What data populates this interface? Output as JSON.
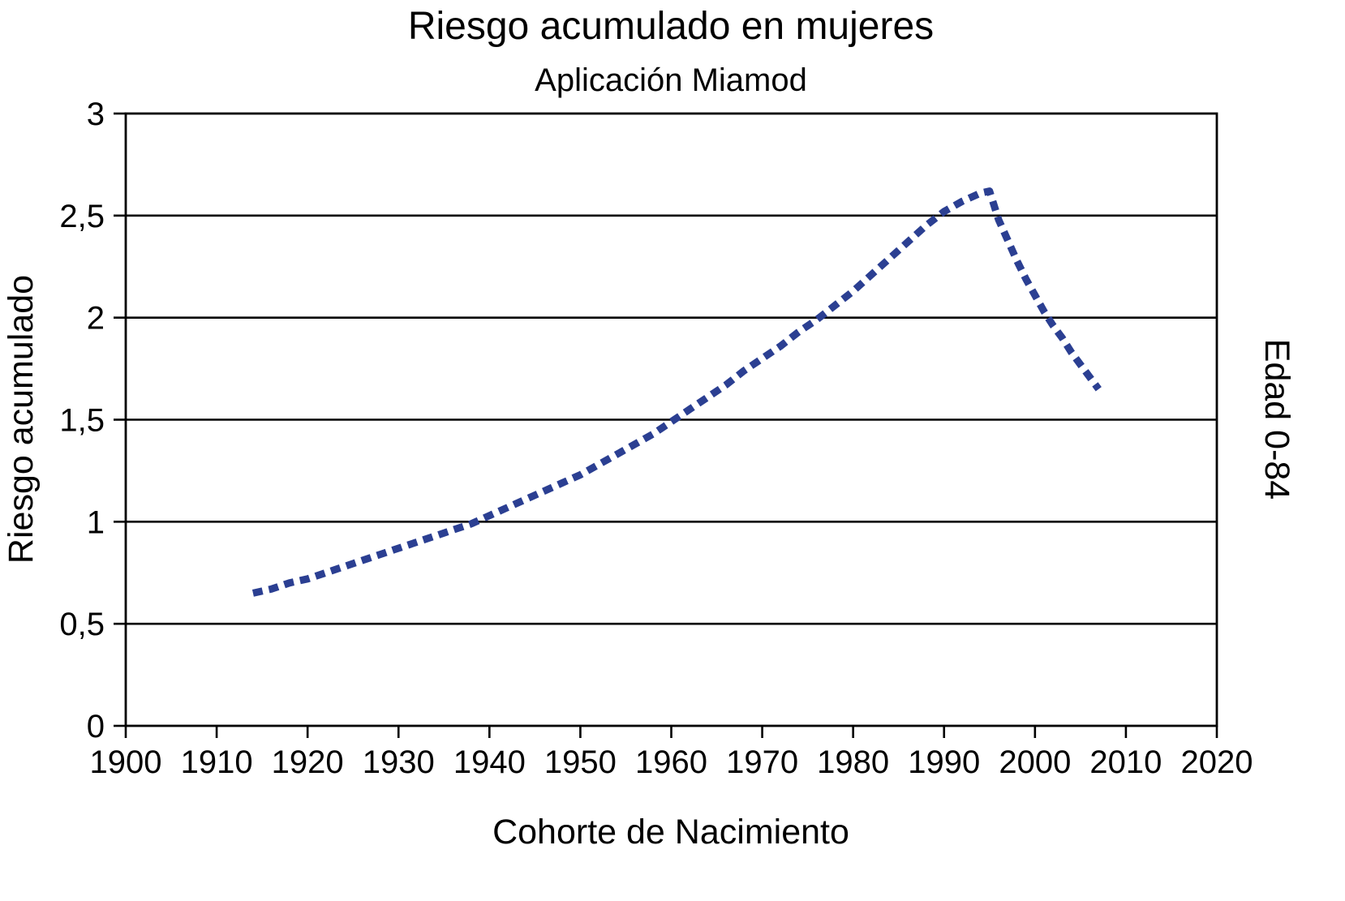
{
  "chart": {
    "title": "Riesgo acumulado en mujeres",
    "subtitle": "Aplicación Miamod",
    "xlabel": "Cohorte de Nacimiento",
    "ylabel": "Riesgo acumulado",
    "right_label": "Edad 0-84"
  },
  "chart_data": {
    "type": "line",
    "title": "Riesgo acumulado en mujeres",
    "subtitle": "Aplicación Miamod",
    "xlabel": "Cohorte de Nacimiento",
    "ylabel": "Riesgo acumulado",
    "y2label": "Edad 0-84",
    "xlim": [
      1900,
      2020
    ],
    "ylim": [
      0,
      3
    ],
    "xticks": [
      1900,
      1910,
      1920,
      1930,
      1940,
      1950,
      1960,
      1970,
      1980,
      1990,
      2000,
      2010,
      2020
    ],
    "yticks": [
      0,
      0.5,
      1,
      1.5,
      2,
      2.5,
      3
    ],
    "ytick_labels": [
      "0",
      "0,5",
      "1",
      "1,5",
      "2",
      "2,5",
      "3"
    ],
    "grid": "horizontal",
    "legend": "none",
    "line_style": "dotted",
    "line_color": "#2b3f92",
    "series": [
      {
        "name": "Riesgo acumulado, Edad 0-84",
        "points": [
          [
            1914,
            0.65
          ],
          [
            1916,
            0.67
          ],
          [
            1918,
            0.7
          ],
          [
            1920,
            0.72
          ],
          [
            1922,
            0.75
          ],
          [
            1924,
            0.78
          ],
          [
            1926,
            0.81
          ],
          [
            1928,
            0.84
          ],
          [
            1930,
            0.87
          ],
          [
            1932,
            0.9
          ],
          [
            1934,
            0.93
          ],
          [
            1936,
            0.96
          ],
          [
            1938,
            0.99
          ],
          [
            1940,
            1.03
          ],
          [
            1942,
            1.07
          ],
          [
            1944,
            1.11
          ],
          [
            1946,
            1.15
          ],
          [
            1948,
            1.19
          ],
          [
            1950,
            1.23
          ],
          [
            1952,
            1.28
          ],
          [
            1954,
            1.33
          ],
          [
            1956,
            1.38
          ],
          [
            1958,
            1.43
          ],
          [
            1960,
            1.49
          ],
          [
            1962,
            1.55
          ],
          [
            1964,
            1.61
          ],
          [
            1966,
            1.67
          ],
          [
            1968,
            1.74
          ],
          [
            1970,
            1.8
          ],
          [
            1972,
            1.86
          ],
          [
            1974,
            1.93
          ],
          [
            1976,
            1.99
          ],
          [
            1978,
            2.06
          ],
          [
            1980,
            2.13
          ],
          [
            1982,
            2.21
          ],
          [
            1984,
            2.29
          ],
          [
            1986,
            2.37
          ],
          [
            1988,
            2.45
          ],
          [
            1990,
            2.52
          ],
          [
            1992,
            2.57
          ],
          [
            1994,
            2.61
          ],
          [
            1995,
            2.62
          ],
          [
            1996,
            2.48
          ],
          [
            1997,
            2.38
          ],
          [
            1998,
            2.28
          ],
          [
            1999,
            2.19
          ],
          [
            2000,
            2.11
          ],
          [
            2001,
            2.03
          ],
          [
            2002,
            1.96
          ],
          [
            2003,
            1.9
          ],
          [
            2004,
            1.83
          ],
          [
            2005,
            1.77
          ],
          [
            2006,
            1.71
          ],
          [
            2007,
            1.65
          ]
        ]
      }
    ]
  }
}
